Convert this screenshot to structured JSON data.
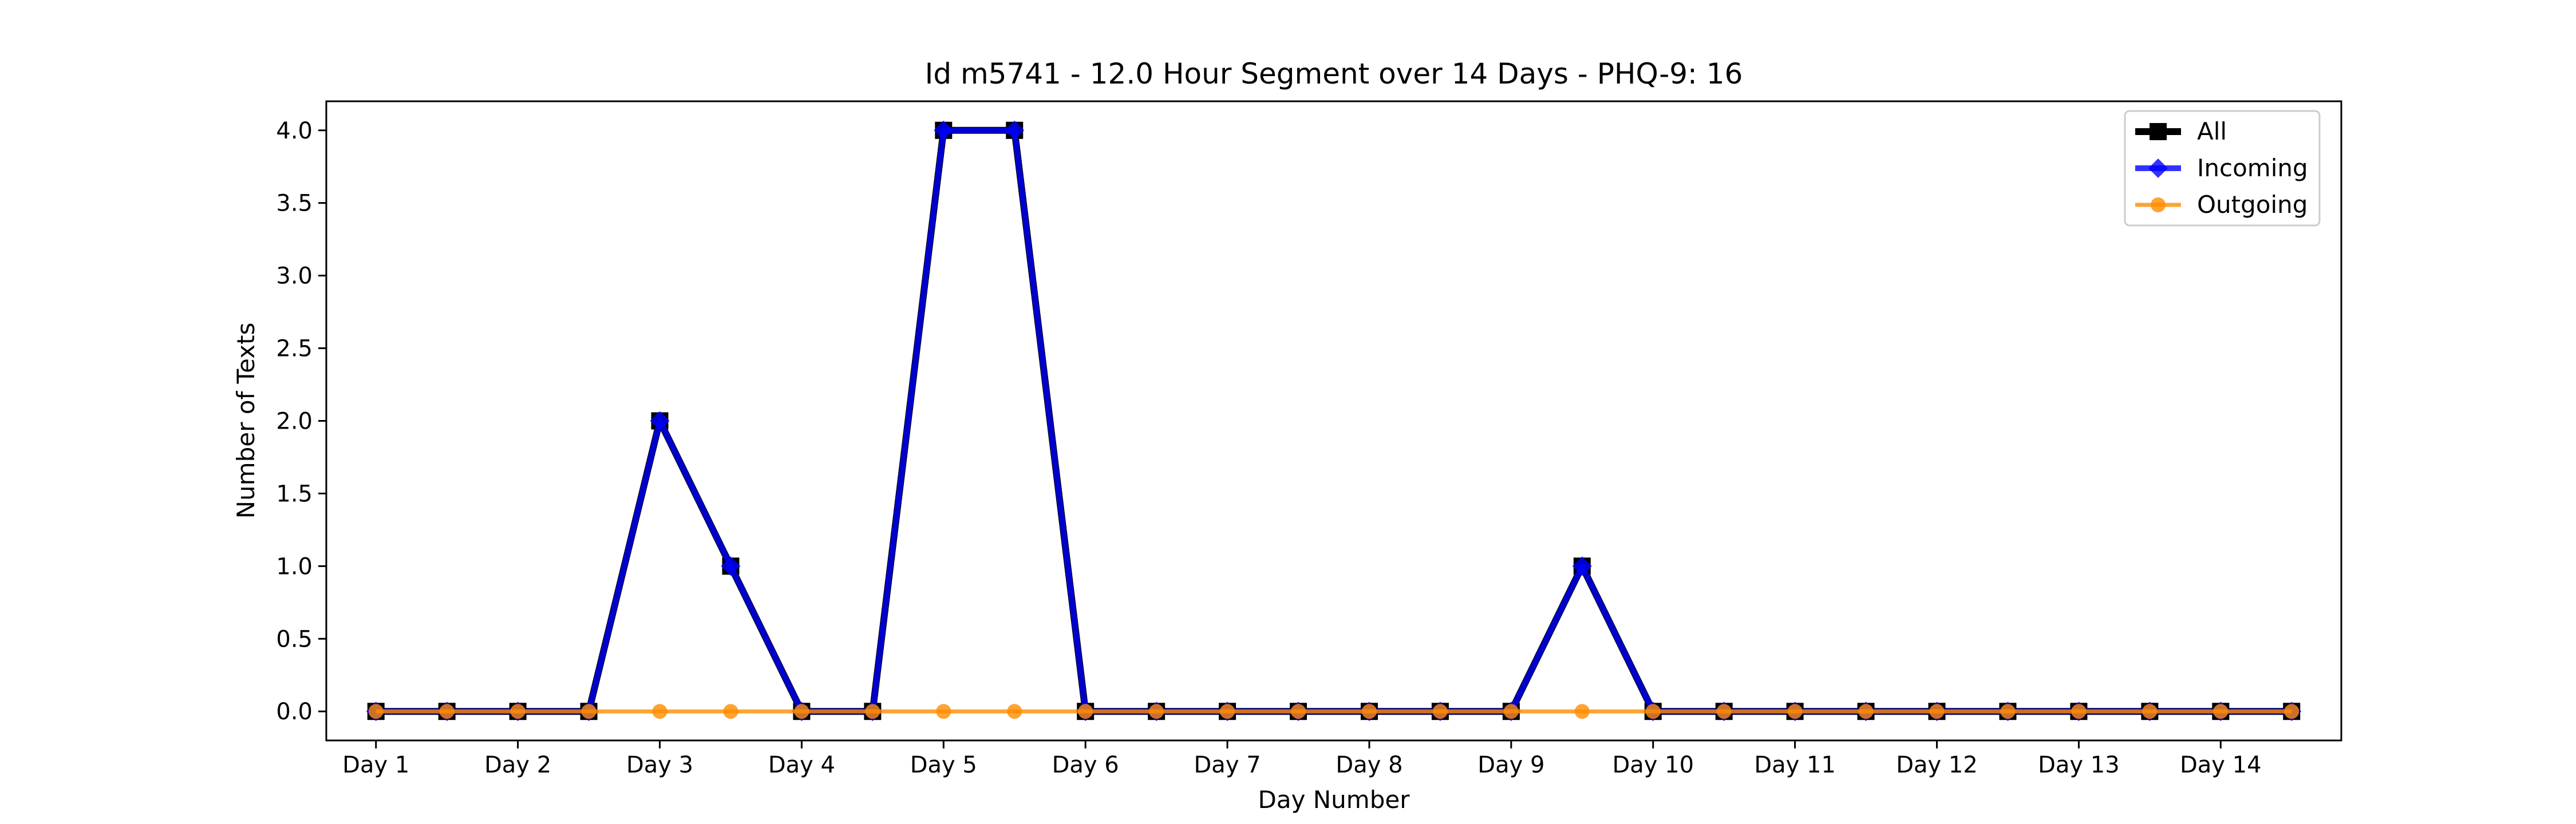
{
  "chart_data": {
    "type": "line",
    "title": "Id m5741 - 12.0 Hour Segment over 14 Days - PHQ-9: 16",
    "xlabel": "Day Number",
    "ylabel": "Number of Texts",
    "ylim": [
      -0.2,
      4.2
    ],
    "yticks": [
      "0.0",
      "0.5",
      "1.0",
      "1.5",
      "2.0",
      "2.5",
      "3.0",
      "3.5",
      "4.0"
    ],
    "xticks": [
      "Day 1",
      "Day 2",
      "Day 3",
      "Day 4",
      "Day 5",
      "Day 6",
      "Day 7",
      "Day 8",
      "Day 9",
      "Day 10",
      "Day 11",
      "Day 12",
      "Day 13",
      "Day 14"
    ],
    "grid": false,
    "legend_position": "top-right",
    "x": [
      1,
      1.5,
      2,
      2.5,
      3,
      3.5,
      4,
      4.5,
      5,
      5.5,
      6,
      6.5,
      7,
      7.5,
      8,
      8.5,
      9,
      9.5,
      10,
      10.5,
      11,
      11.5,
      12,
      12.5,
      13,
      13.5,
      14,
      14.5
    ],
    "series": [
      {
        "name": "All",
        "color": "#000000",
        "marker": "square",
        "values": [
          0,
          0,
          0,
          0,
          2,
          1,
          0,
          0,
          4,
          4,
          0,
          0,
          0,
          0,
          0,
          0,
          0,
          1,
          0,
          0,
          0,
          0,
          0,
          0,
          0,
          0,
          0,
          0
        ]
      },
      {
        "name": "Incoming",
        "color": "#0000ff",
        "marker": "diamond",
        "values": [
          0,
          0,
          0,
          0,
          2,
          1,
          0,
          0,
          4,
          4,
          0,
          0,
          0,
          0,
          0,
          0,
          0,
          1,
          0,
          0,
          0,
          0,
          0,
          0,
          0,
          0,
          0,
          0
        ]
      },
      {
        "name": "Outgoing",
        "color": "#ff8c00",
        "marker": "circle",
        "values": [
          0,
          0,
          0,
          0,
          0,
          0,
          0,
          0,
          0,
          0,
          0,
          0,
          0,
          0,
          0,
          0,
          0,
          0,
          0,
          0,
          0,
          0,
          0,
          0,
          0,
          0,
          0,
          0
        ]
      }
    ]
  }
}
